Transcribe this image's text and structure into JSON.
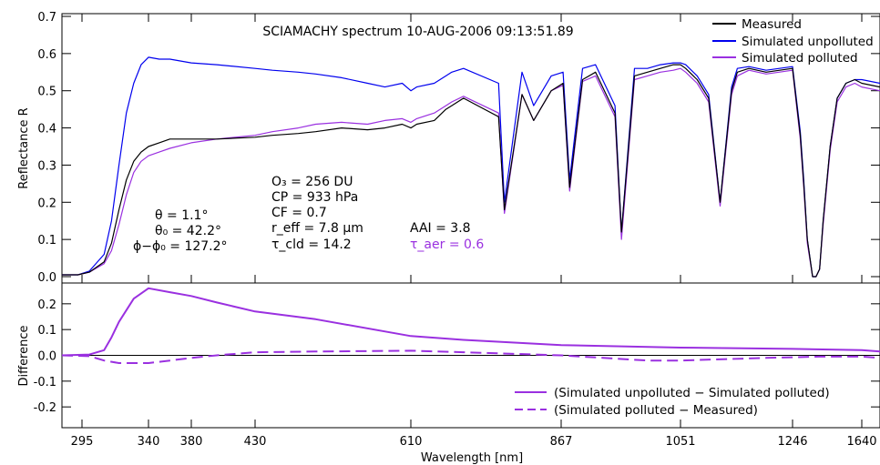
{
  "chart_data": [
    {
      "type": "line",
      "title": "SCIAMACHY spectrum 10-AUG-2006 09:13:51.89",
      "ylabel": "Reflectance R",
      "ylim": [
        0,
        0.7
      ],
      "yticks": [
        0.0,
        0.1,
        0.2,
        0.3,
        0.4,
        0.5,
        0.6,
        0.7
      ],
      "ytick_labels": [
        "0.0",
        "0.1",
        "0.2",
        "0.3",
        "0.4",
        "0.5",
        "0.6",
        "0.7"
      ],
      "legend_position": "top-right",
      "colors": {
        "measured": "#000000",
        "unpolluted": "#0000ee",
        "polluted": "#9a30e0"
      },
      "series": [
        {
          "name": "Measured",
          "key": "measured",
          "x": [
            270,
            290,
            300,
            310,
            315,
            320,
            325,
            330,
            335,
            340,
            350,
            360,
            380,
            400,
            430,
            450,
            480,
            500,
            530,
            560,
            580,
            600,
            610,
            620,
            650,
            670,
            680,
            700,
            760,
            770,
            800,
            820,
            850,
            870,
            880,
            900,
            920,
            950,
            960,
            980,
            1000,
            1020,
            1040,
            1051,
            1060,
            1080,
            1100,
            1120,
            1140,
            1150,
            1170,
            1200,
            1246,
            1290,
            1310,
            1330,
            1360,
            1380,
            1400,
            1420,
            1460,
            1500,
            1550,
            1600,
            1640,
            1680
          ],
          "y": [
            0.005,
            0.005,
            0.012,
            0.04,
            0.09,
            0.18,
            0.26,
            0.31,
            0.335,
            0.35,
            0.36,
            0.37,
            0.37,
            0.37,
            0.375,
            0.38,
            0.385,
            0.39,
            0.4,
            0.395,
            0.4,
            0.41,
            0.4,
            0.41,
            0.42,
            0.45,
            0.46,
            0.48,
            0.43,
            0.18,
            0.49,
            0.42,
            0.5,
            0.52,
            0.24,
            0.53,
            0.55,
            0.44,
            0.12,
            0.54,
            0.55,
            0.56,
            0.57,
            0.57,
            0.56,
            0.53,
            0.48,
            0.2,
            0.5,
            0.55,
            0.56,
            0.55,
            0.56,
            0.38,
            0.25,
            0.1,
            0.0,
            0.0,
            0.02,
            0.15,
            0.35,
            0.48,
            0.52,
            0.53,
            0.52,
            0.51
          ]
        },
        {
          "name": "Simulated unpolluted",
          "key": "unpolluted",
          "x": [
            270,
            290,
            300,
            310,
            315,
            320,
            325,
            330,
            335,
            340,
            350,
            360,
            380,
            400,
            430,
            450,
            480,
            500,
            530,
            560,
            580,
            600,
            610,
            620,
            650,
            670,
            680,
            700,
            760,
            770,
            800,
            820,
            850,
            870,
            880,
            900,
            920,
            950,
            960,
            980,
            1000,
            1020,
            1040,
            1051,
            1060,
            1080,
            1100,
            1120,
            1140,
            1150,
            1170,
            1200,
            1246,
            1290,
            1310,
            1330,
            1360,
            1380,
            1400,
            1420,
            1460,
            1500,
            1550,
            1600,
            1640,
            1680
          ],
          "y": [
            0.005,
            0.005,
            0.015,
            0.06,
            0.15,
            0.3,
            0.44,
            0.52,
            0.57,
            0.59,
            0.585,
            0.585,
            0.575,
            0.57,
            0.56,
            0.555,
            0.55,
            0.545,
            0.535,
            0.52,
            0.51,
            0.52,
            0.5,
            0.51,
            0.52,
            0.54,
            0.55,
            0.56,
            0.52,
            0.2,
            0.55,
            0.46,
            0.54,
            0.55,
            0.26,
            0.56,
            0.57,
            0.46,
            0.12,
            0.56,
            0.56,
            0.57,
            0.575,
            0.575,
            0.57,
            0.54,
            0.49,
            0.2,
            0.51,
            0.56,
            0.565,
            0.555,
            0.565,
            0.39,
            0.26,
            0.1,
            0.0,
            0.0,
            0.02,
            0.15,
            0.35,
            0.48,
            0.52,
            0.53,
            0.53,
            0.52
          ]
        },
        {
          "name": "Simulated polluted",
          "key": "polluted",
          "x": [
            270,
            290,
            300,
            310,
            315,
            320,
            325,
            330,
            335,
            340,
            350,
            360,
            380,
            400,
            430,
            450,
            480,
            500,
            530,
            560,
            580,
            600,
            610,
            620,
            650,
            670,
            680,
            700,
            760,
            770,
            800,
            820,
            850,
            870,
            880,
            900,
            920,
            950,
            960,
            980,
            1000,
            1020,
            1040,
            1051,
            1060,
            1080,
            1100,
            1120,
            1140,
            1150,
            1170,
            1200,
            1246,
            1290,
            1310,
            1330,
            1360,
            1380,
            1400,
            1420,
            1460,
            1500,
            1550,
            1600,
            1640,
            1680
          ],
          "y": [
            0.005,
            0.005,
            0.012,
            0.035,
            0.07,
            0.14,
            0.22,
            0.28,
            0.31,
            0.325,
            0.335,
            0.345,
            0.36,
            0.37,
            0.38,
            0.39,
            0.4,
            0.41,
            0.415,
            0.41,
            0.42,
            0.425,
            0.415,
            0.425,
            0.44,
            0.46,
            0.47,
            0.485,
            0.44,
            0.17,
            0.49,
            0.42,
            0.5,
            0.515,
            0.23,
            0.525,
            0.54,
            0.43,
            0.1,
            0.53,
            0.54,
            0.55,
            0.555,
            0.56,
            0.55,
            0.52,
            0.47,
            0.19,
            0.49,
            0.54,
            0.555,
            0.545,
            0.555,
            0.37,
            0.24,
            0.09,
            0.0,
            0.0,
            0.02,
            0.14,
            0.34,
            0.47,
            0.51,
            0.52,
            0.51,
            0.5
          ]
        }
      ],
      "annotations": {
        "left": [
          "θ  =  1.1°",
          "θ₀ = 42.2°",
          "ϕ−ϕ₀ = 127.2°"
        ],
        "middle": [
          "O₃ = 256 DU",
          "CP = 933 hPa",
          "CF = 0.7",
          "r_eff = 7.8 µm",
          "τ_cld = 14.2"
        ],
        "aai": "AAI = 3.8",
        "taer": "τ_aer = 0.6"
      }
    },
    {
      "type": "line",
      "title": "",
      "xlabel": "Wavelength [nm]",
      "ylabel": "Difference",
      "ylim": [
        -0.27,
        0.27
      ],
      "yticks": [
        -0.2,
        -0.1,
        0.0,
        0.1,
        0.2
      ],
      "ytick_labels": [
        "-0.2",
        "-0.1",
        "0.0",
        "0.1",
        "0.2"
      ],
      "xtick_labels": [
        "295",
        "340",
        "380",
        "430",
        "610",
        "867",
        "1051",
        "1246",
        "1640"
      ],
      "legend_position": "bottom-right",
      "series": [
        {
          "name": "(Simulated unpolluted − Simulated polluted)",
          "style": "solid",
          "x": [
            270,
            300,
            310,
            315,
            320,
            330,
            340,
            360,
            380,
            400,
            430,
            500,
            610,
            700,
            867,
            1051,
            1246,
            1640,
            1680
          ],
          "y": [
            0.0,
            0.003,
            0.02,
            0.07,
            0.13,
            0.22,
            0.26,
            0.245,
            0.23,
            0.205,
            0.17,
            0.14,
            0.075,
            0.06,
            0.04,
            0.03,
            0.025,
            0.02,
            0.015
          ]
        },
        {
          "name": "(Simulated polluted − Measured)",
          "style": "dashed",
          "x": [
            270,
            300,
            310,
            320,
            330,
            340,
            360,
            380,
            400,
            430,
            500,
            610,
            700,
            867,
            1000,
            1051,
            1200,
            1400,
            1640,
            1680
          ],
          "y": [
            0.0,
            -0.003,
            -0.02,
            -0.03,
            -0.03,
            -0.03,
            -0.02,
            -0.01,
            0.0,
            0.012,
            0.015,
            0.018,
            0.012,
            0.0,
            -0.02,
            -0.02,
            -0.01,
            -0.005,
            -0.005,
            -0.01
          ]
        }
      ]
    }
  ]
}
